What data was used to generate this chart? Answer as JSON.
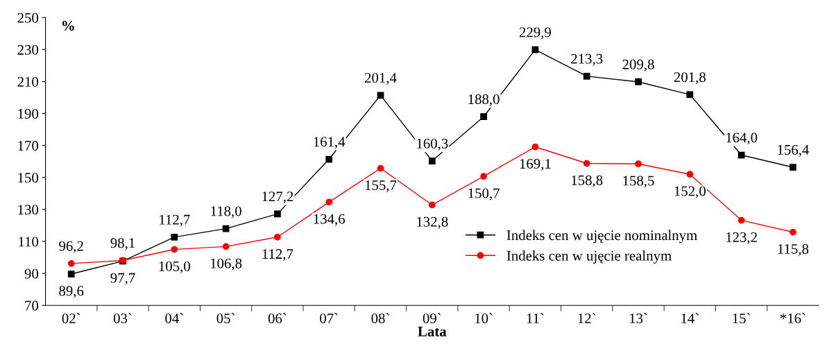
{
  "chart_data": {
    "type": "line",
    "xlabel": "Lata",
    "ylabel": "%",
    "categories": [
      "02`",
      "03`",
      "04`",
      "05`",
      "06`",
      "07`",
      "08`",
      "09`",
      "10`",
      "11`",
      "12`",
      "13`",
      "14`",
      "15`",
      "*16`"
    ],
    "series": [
      {
        "name": "Indeks cen w ujęcie nominalnym",
        "color": "#000000",
        "marker": "square",
        "values": [
          89.6,
          97.7,
          112.7,
          118.0,
          127.2,
          161.4,
          201.4,
          160.3,
          188.0,
          229.9,
          213.3,
          209.8,
          201.8,
          164.0,
          156.4
        ],
        "value_labels": [
          "89,6",
          "97,7",
          "112,7",
          "118,0",
          "127,2",
          "161,4",
          "201,4",
          "160,3",
          "188,0",
          "229,9",
          "213,3",
          "209,8",
          "201,8",
          "164,0",
          "156,4"
        ]
      },
      {
        "name": "Indeks cen w ujęcie realnym",
        "color": "#ff0000",
        "marker": "circle",
        "values": [
          96.2,
          98.1,
          105.0,
          106.8,
          112.7,
          134.6,
          155.7,
          132.8,
          150.7,
          169.1,
          158.8,
          158.5,
          152.0,
          123.2,
          115.8
        ],
        "value_labels": [
          "96,2",
          "98,1",
          "105,0",
          "106,8",
          "112,7",
          "134,6",
          "155,7",
          "132,8",
          "150,7",
          "169,1",
          "158,8",
          "158,5",
          "152,0",
          "123,2",
          "115,8"
        ]
      }
    ],
    "ylim": [
      70,
      250
    ],
    "yticks": [
      70,
      90,
      110,
      130,
      150,
      170,
      190,
      210,
      230,
      250
    ],
    "legend": "bottom right",
    "grid": false
  }
}
